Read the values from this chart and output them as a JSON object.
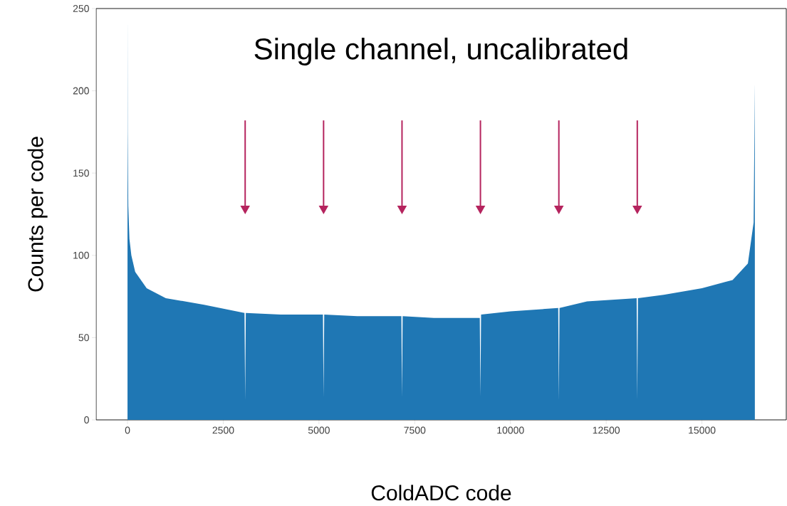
{
  "chart_data": {
    "type": "area",
    "title": "Single channel, uncalibrated",
    "xlabel": "ColdADC code",
    "ylabel": "Counts per code",
    "x": [
      0,
      5,
      20,
      50,
      100,
      200,
      500,
      1000,
      2000,
      3055,
      3072,
      3089,
      4000,
      5103,
      5120,
      5137,
      6000,
      7151,
      7168,
      7185,
      8000,
      9199,
      9216,
      9233,
      10000,
      11247,
      11264,
      11281,
      12000,
      13295,
      13312,
      13329,
      14000,
      15000,
      15800,
      16200,
      16350,
      16383
    ],
    "series": [
      {
        "color": "#1f77b4",
        "values": [
          250,
          175,
          130,
          110,
          100,
          90,
          80,
          74,
          70,
          65,
          12,
          65,
          64,
          64,
          14,
          64,
          63,
          63,
          14,
          63,
          62,
          62,
          14,
          64,
          66,
          68,
          12,
          68,
          72,
          74,
          12,
          74,
          76,
          80,
          85,
          95,
          120,
          205
        ]
      }
    ],
    "xlim": [
      -819,
      17203
    ],
    "ylim": [
      0,
      250
    ],
    "xticks": [
      0,
      2500,
      5000,
      7500,
      10000,
      12500,
      15000
    ],
    "yticks": [
      0,
      50,
      100,
      150,
      200,
      250
    ],
    "grid": false
  }
}
